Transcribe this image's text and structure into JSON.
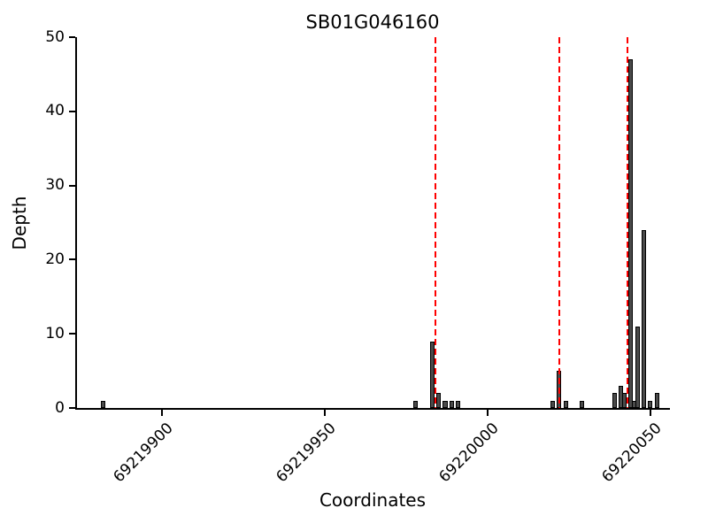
{
  "chart_data": {
    "type": "bar",
    "title": "SB01G046160",
    "xlabel": "Coordinates",
    "ylabel": "Depth",
    "xlim": [
      69219874,
      69220056
    ],
    "ylim": [
      0,
      50
    ],
    "xticks": [
      69219900,
      69219950,
      69220000,
      69220050
    ],
    "yticks": [
      0,
      10,
      20,
      30,
      40,
      50
    ],
    "bar_width": 1.4,
    "bar_color": "#4a4a4a",
    "bar_edge_color": "#000000",
    "vline_color": "#ff0000",
    "vlines": [
      69219984,
      69220022,
      69220043
    ],
    "bars": [
      {
        "x": 69219882,
        "depth": 1
      },
      {
        "x": 69219978,
        "depth": 1
      },
      {
        "x": 69219983,
        "depth": 9
      },
      {
        "x": 69219985,
        "depth": 2
      },
      {
        "x": 69219987,
        "depth": 1
      },
      {
        "x": 69219989,
        "depth": 1
      },
      {
        "x": 69219991,
        "depth": 1
      },
      {
        "x": 69220020,
        "depth": 1
      },
      {
        "x": 69220022,
        "depth": 5
      },
      {
        "x": 69220024,
        "depth": 1
      },
      {
        "x": 69220029,
        "depth": 1
      },
      {
        "x": 69220039,
        "depth": 2
      },
      {
        "x": 69220041,
        "depth": 3
      },
      {
        "x": 69220042,
        "depth": 2
      },
      {
        "x": 69220044,
        "depth": 47
      },
      {
        "x": 69220045,
        "depth": 1
      },
      {
        "x": 69220046,
        "depth": 11
      },
      {
        "x": 69220048,
        "depth": 24
      },
      {
        "x": 69220050,
        "depth": 1
      },
      {
        "x": 69220052,
        "depth": 2
      }
    ]
  }
}
